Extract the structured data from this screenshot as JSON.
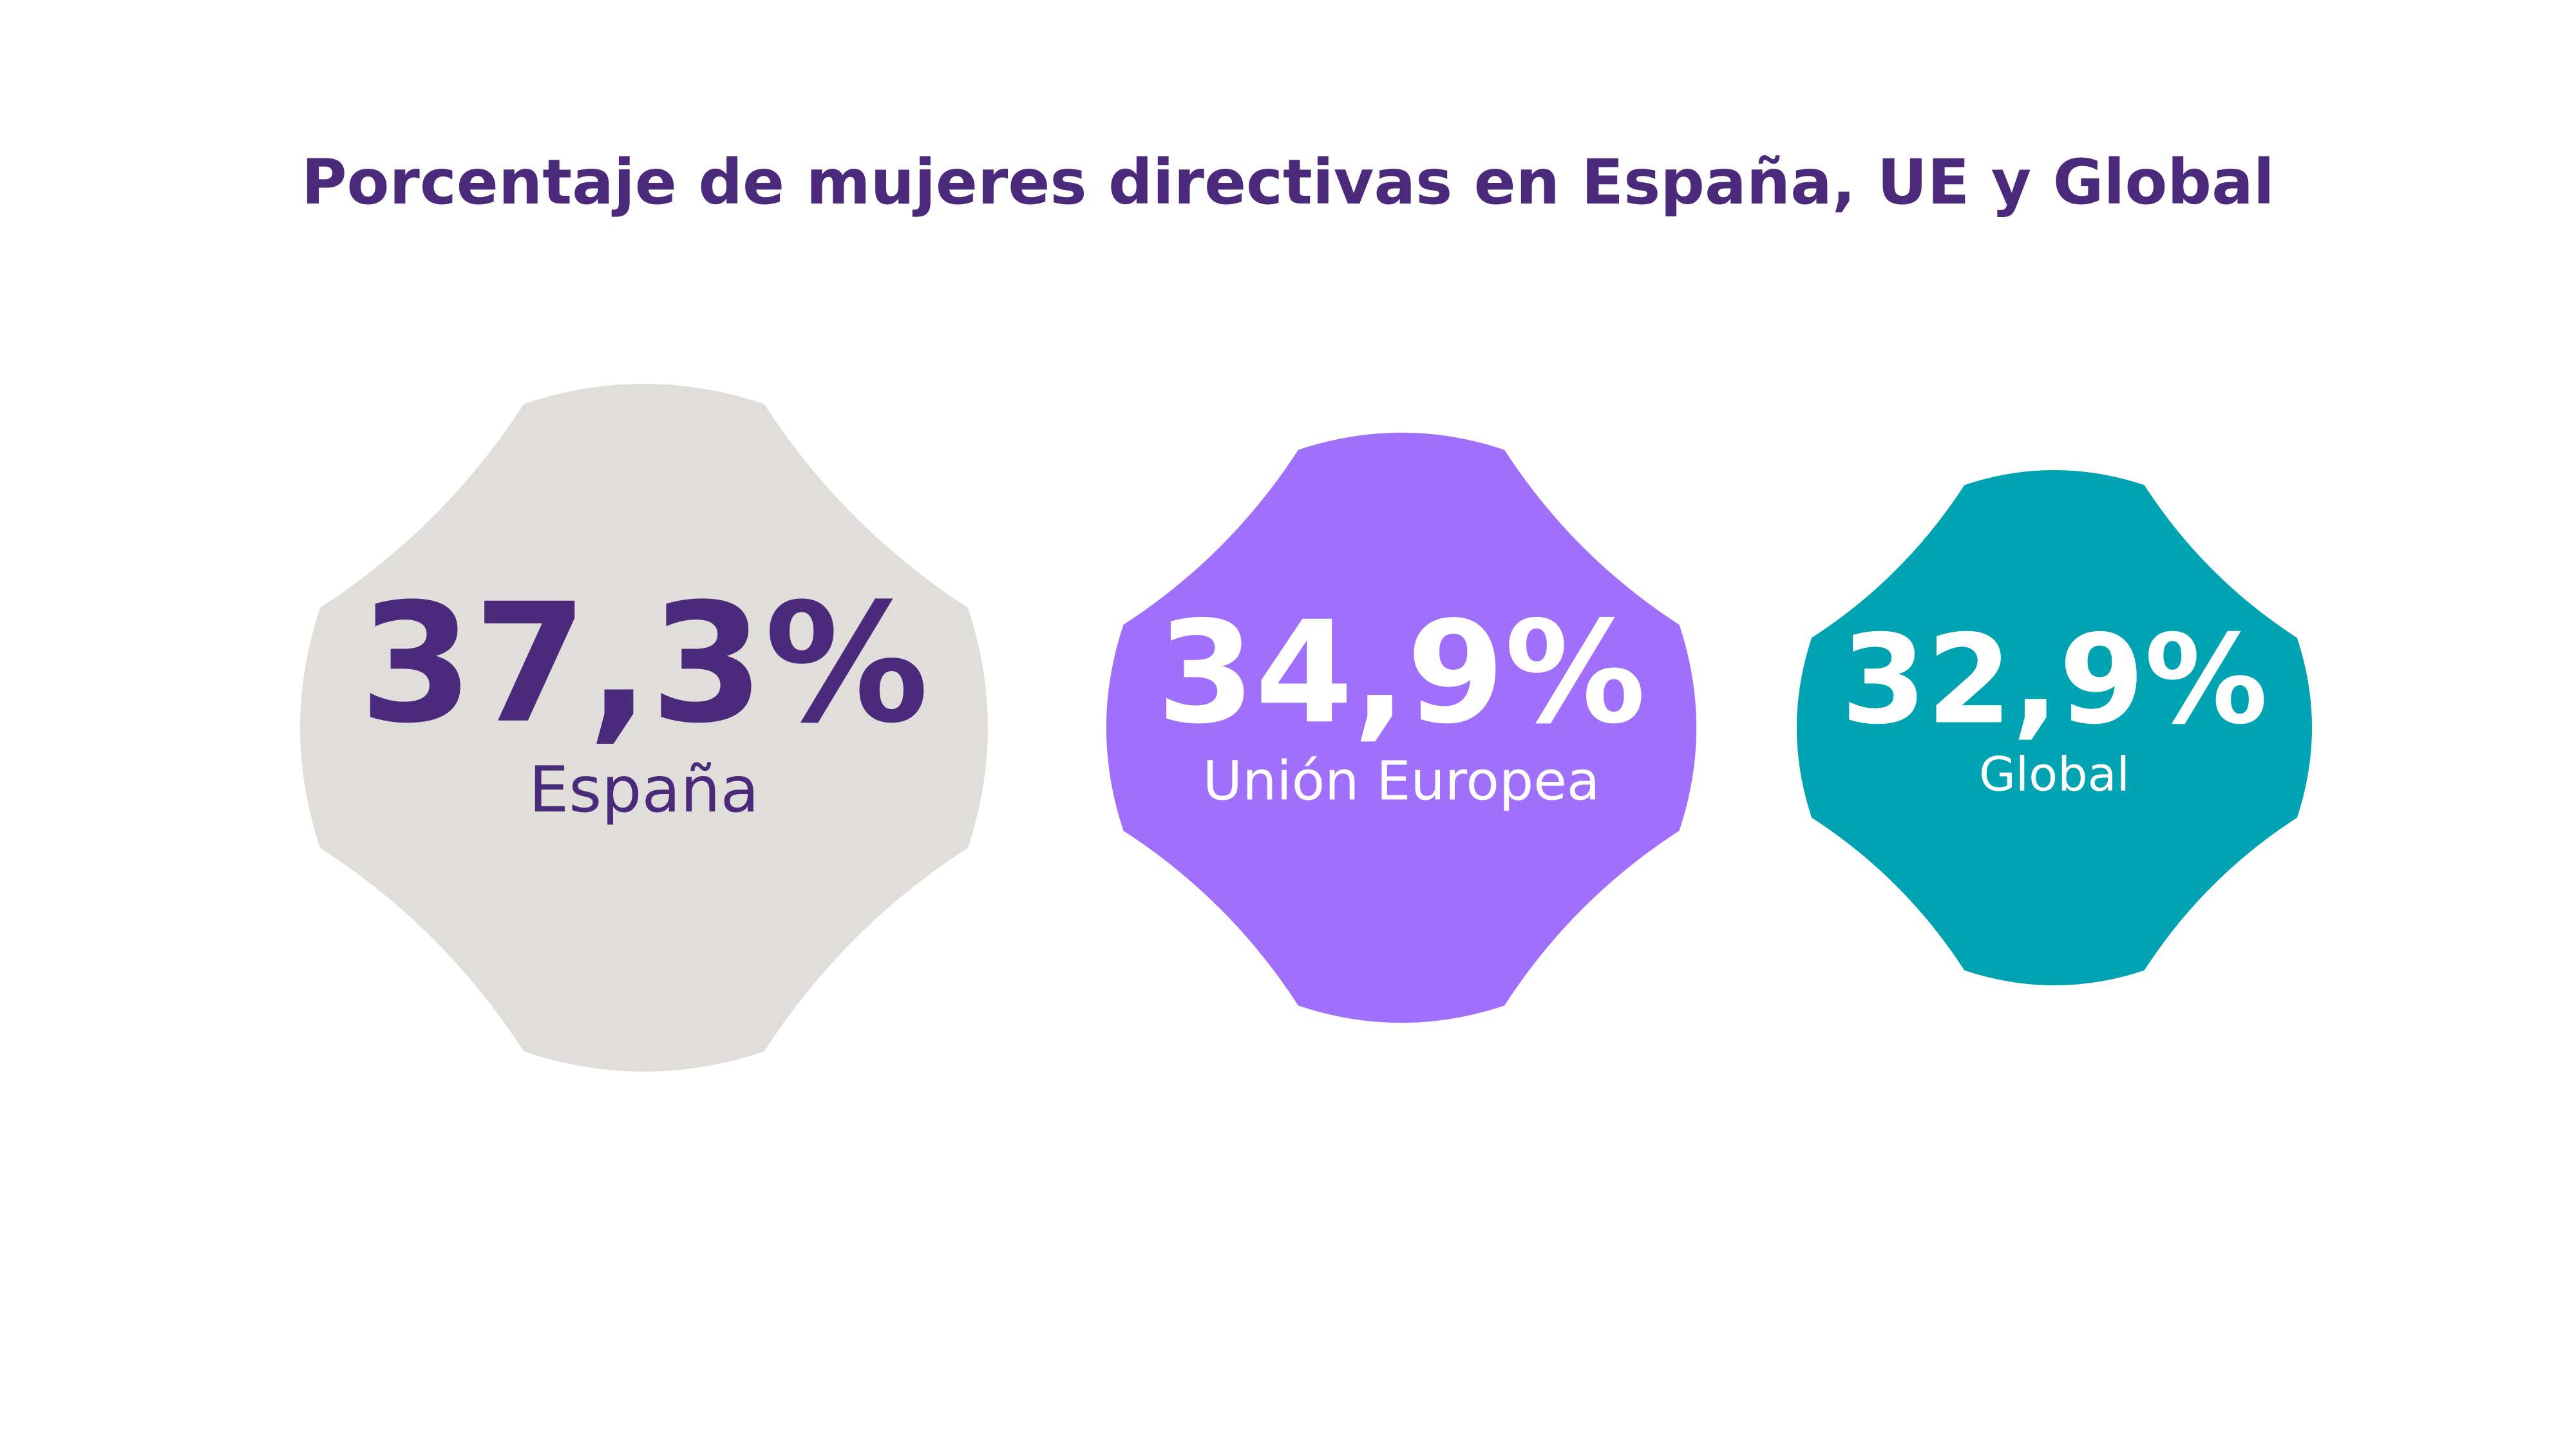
{
  "colors": {
    "title": "#4b2a7b",
    "background": "#ffffff"
  },
  "chart_data": {
    "type": "bubble-shapes",
    "title": "Porcentaje de mujeres directivas en España, UE y Global",
    "unit": "%",
    "series": [
      {
        "name": "Porcentaje de mujeres directivas",
        "items": [
          {
            "category": "España",
            "value": 37.3,
            "value_label": "37,3%",
            "fill": "#e0deda",
            "text_color": "#4b2a7b"
          },
          {
            "category": "Unión Europea",
            "value": 34.9,
            "value_label": "34,9%",
            "fill": "#a06ffc",
            "text_color": "#ffffff"
          },
          {
            "category": "Global",
            "value": 32.9,
            "value_label": "32,9%",
            "fill": "#00a3b1",
            "text_color": "#ffffff"
          }
        ]
      }
    ],
    "size_encoding": "area proportional to value",
    "legend": "none",
    "grid": false
  }
}
